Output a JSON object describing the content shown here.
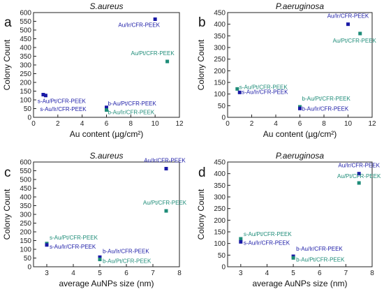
{
  "colors": {
    "blue": "#1a1aa6",
    "teal": "#1e8c78",
    "axis": "#222222"
  },
  "chart_data": [
    {
      "id": "a",
      "type": "scatter",
      "letter": "a",
      "title": "S.aureus",
      "xlabel": "Au content (µg/cm²)",
      "ylabel": "Colony Count",
      "xlim": [
        0,
        12
      ],
      "ylim": [
        0,
        600
      ],
      "xticks": [
        0,
        2,
        4,
        6,
        8,
        10,
        12
      ],
      "yticks": [
        0,
        50,
        100,
        150,
        200,
        250,
        300,
        350,
        400,
        450,
        500,
        550,
        600
      ],
      "points": [
        {
          "label": "Au/Ir/CFR-PEEK",
          "x": 10,
          "y": 562,
          "color": "blue"
        },
        {
          "label": "Au/Pt/CFR-PEEK",
          "x": 11,
          "y": 320,
          "color": "teal"
        },
        {
          "label": "s-Au/Pt/CFR-PEEK",
          "x": 0.8,
          "y": 130,
          "color": "blue"
        },
        {
          "label": "s-Au/Ir/CFR-PEEK",
          "x": 1.0,
          "y": 125,
          "color": "blue"
        },
        {
          "label": "b-Au/Pt/CFR-PEEK",
          "x": 6,
          "y": 57,
          "color": "blue"
        },
        {
          "label": "b-Au/Ir/CFR-PEEK",
          "x": 6,
          "y": 42,
          "color": "teal"
        }
      ]
    },
    {
      "id": "b",
      "type": "scatter",
      "letter": "b",
      "title": "P.aeruginosa",
      "xlabel": "Au content (µg/cm²)",
      "ylabel": "Colony Count",
      "xlim": [
        0,
        12
      ],
      "ylim": [
        0,
        450
      ],
      "xticks": [
        0,
        2,
        4,
        6,
        8,
        10,
        12
      ],
      "yticks": [
        0,
        50,
        100,
        150,
        200,
        250,
        300,
        350,
        400,
        450
      ],
      "points": [
        {
          "label": "Au/Ir/CFR-PEEK",
          "x": 10,
          "y": 400,
          "color": "blue"
        },
        {
          "label": "Au/Pt/CFR-PEEK",
          "x": 11,
          "y": 360,
          "color": "teal"
        },
        {
          "label": "s-Au/Pt/CFR-PEEK",
          "x": 0.8,
          "y": 122,
          "color": "teal"
        },
        {
          "label": "s-Au/Ir/CFR-PEEK",
          "x": 1.0,
          "y": 107,
          "color": "blue"
        },
        {
          "label": "b-Au/Pt/CFR-PEEK",
          "x": 6,
          "y": 45,
          "color": "teal"
        },
        {
          "label": "b-Au/Ir/CFR-PEEK",
          "x": 6,
          "y": 38,
          "color": "blue"
        }
      ]
    },
    {
      "id": "c",
      "type": "scatter",
      "letter": "c",
      "title": "S.aureus",
      "xlabel": "average AuNPs size (nm)",
      "ylabel": "Colony Count",
      "xlim": [
        2.5,
        8
      ],
      "ylim": [
        0,
        600
      ],
      "xticks": [
        3,
        4,
        5,
        6,
        7,
        8
      ],
      "yticks": [
        0,
        50,
        100,
        150,
        200,
        250,
        300,
        350,
        400,
        450,
        500,
        550,
        600
      ],
      "points": [
        {
          "label": "Au/Ir/CFR-PEEK",
          "x": 7.5,
          "y": 562,
          "color": "blue"
        },
        {
          "label": "Au/Pt/CFR-PEEK",
          "x": 7.5,
          "y": 320,
          "color": "teal"
        },
        {
          "label": "s-Au/Pt/CFR-PEEK",
          "x": 3.0,
          "y": 133,
          "color": "teal"
        },
        {
          "label": "s-Au/Ir/CFR-PEEK",
          "x": 3.0,
          "y": 125,
          "color": "blue"
        },
        {
          "label": "b-Au/Ir/CFR-PEEK",
          "x": 5.0,
          "y": 55,
          "color": "blue"
        },
        {
          "label": "b-Au/Pt/CFR-PEEK",
          "x": 5.0,
          "y": 42,
          "color": "teal"
        }
      ]
    },
    {
      "id": "d",
      "type": "scatter",
      "letter": "d",
      "title": "P.aeruginosa",
      "xlabel": "average AuNPs size (nm)",
      "ylabel": "Colony Count",
      "xlim": [
        2.5,
        8
      ],
      "ylim": [
        0,
        450
      ],
      "xticks": [
        3,
        4,
        5,
        6,
        7,
        8
      ],
      "yticks": [
        0,
        50,
        100,
        150,
        200,
        250,
        300,
        350,
        400,
        450
      ],
      "points": [
        {
          "label": "Au/Ir/CFR-PEEK",
          "x": 7.5,
          "y": 400,
          "color": "blue"
        },
        {
          "label": "Au/Pt/CFR-PEEK",
          "x": 7.5,
          "y": 360,
          "color": "teal"
        },
        {
          "label": "s-Au/Pt/CFR-PEEK",
          "x": 3.0,
          "y": 120,
          "color": "teal"
        },
        {
          "label": "s-Au/Ir/CFR-PEEK",
          "x": 3.0,
          "y": 107,
          "color": "blue"
        },
        {
          "label": "b-Au/Ir/CFR-PEEK",
          "x": 5.0,
          "y": 45,
          "color": "blue"
        },
        {
          "label": "b-Au/Pt/CFR-PEEK",
          "x": 5.0,
          "y": 38,
          "color": "teal"
        }
      ]
    }
  ]
}
